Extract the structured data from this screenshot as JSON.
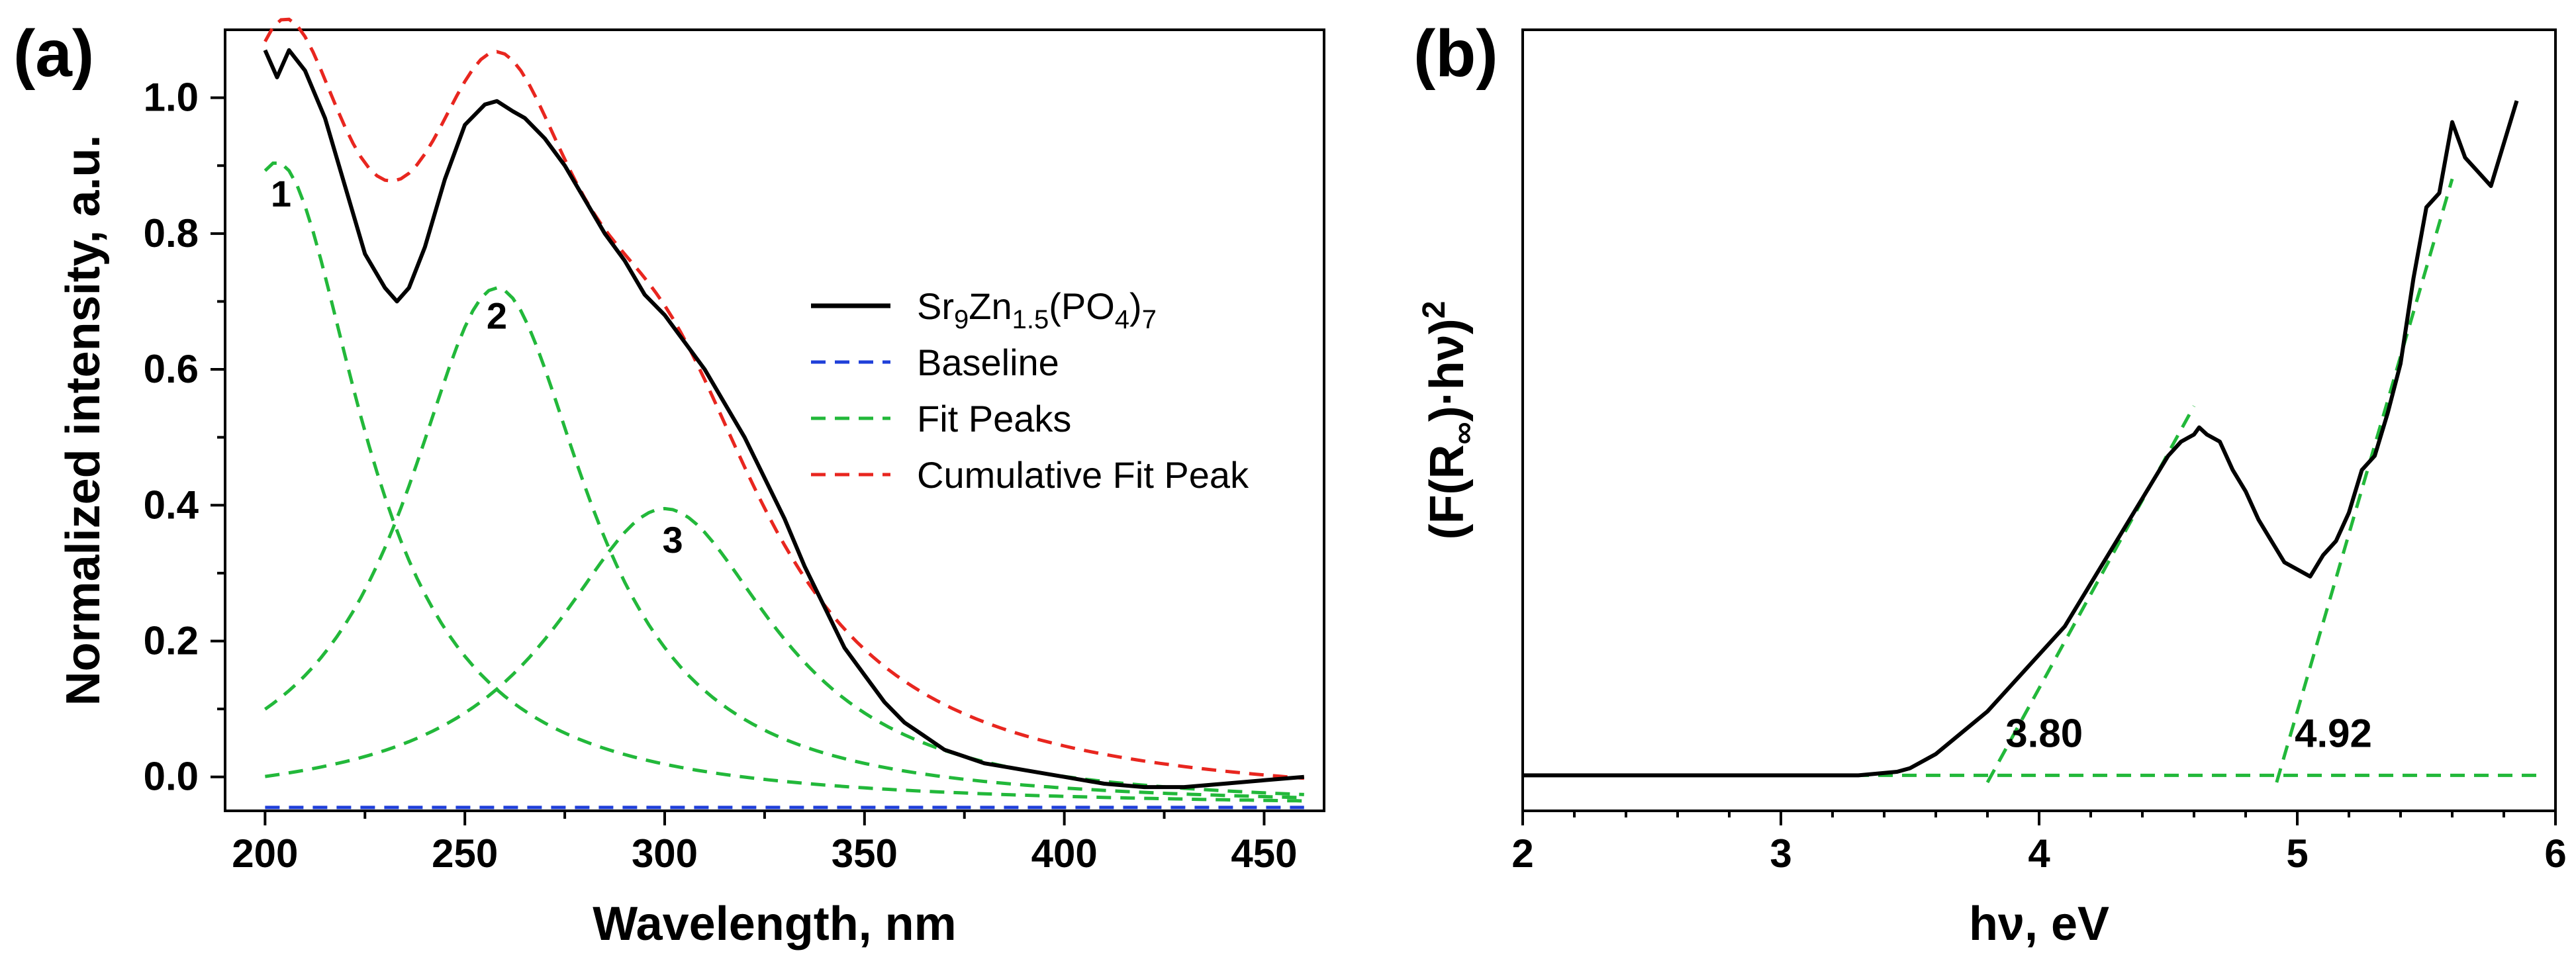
{
  "chart_data": [
    {
      "panel": "(a)",
      "type": "line",
      "xlabel": "Wavelength, nm",
      "ylabel": "Normalized intensity, a.u.",
      "xlim": [
        190,
        465
      ],
      "ylim": [
        -0.05,
        1.1
      ],
      "xticks": [
        200,
        250,
        300,
        350,
        400,
        450
      ],
      "yticks": [
        0.0,
        0.2,
        0.4,
        0.6,
        0.8,
        1.0
      ],
      "xtick_labels": [
        "200",
        "250",
        "300",
        "350",
        "400",
        "450"
      ],
      "ytick_labels": [
        "0.0",
        "0.2",
        "0.4",
        "0.6",
        "0.8",
        "1.0"
      ],
      "legend_position": "center-right",
      "legend": {
        "sample": {
          "base": "Sr",
          "s1": "9",
          "m1": "Zn",
          "s2": "1.5",
          "m2": "(PO",
          "s3": "4",
          "m3": ")",
          "s4": "7"
        },
        "baseline": "Baseline",
        "fit_peaks": "Fit Peaks",
        "cumulative": "Cumulative Fit Peak"
      },
      "colors": {
        "sample": "#000000",
        "baseline": "#1f3fd9",
        "fit": "#22b83a",
        "cumulative": "#e8261f"
      },
      "series": [
        {
          "name": "Sr9Zn1.5(PO4)7",
          "x": [
            200,
            203,
            206,
            210,
            215,
            220,
            225,
            230,
            233,
            236,
            240,
            245,
            250,
            255,
            258,
            262,
            265,
            270,
            275,
            280,
            285,
            290,
            295,
            300,
            305,
            310,
            315,
            320,
            325,
            330,
            335,
            340,
            345,
            350,
            355,
            360,
            365,
            370,
            375,
            380,
            390,
            400,
            410,
            420,
            430,
            440,
            450,
            460
          ],
          "y": [
            1.07,
            1.03,
            1.07,
            1.04,
            0.97,
            0.87,
            0.77,
            0.72,
            0.7,
            0.72,
            0.78,
            0.88,
            0.96,
            0.99,
            0.995,
            0.98,
            0.97,
            0.94,
            0.9,
            0.85,
            0.8,
            0.76,
            0.71,
            0.68,
            0.64,
            0.6,
            0.55,
            0.5,
            0.44,
            0.38,
            0.31,
            0.25,
            0.19,
            0.15,
            0.11,
            0.08,
            0.06,
            0.04,
            0.03,
            0.02,
            0.01,
            0.0,
            -0.01,
            -0.015,
            -0.015,
            -0.01,
            -0.005,
            0.0
          ]
        },
        {
          "name": "Baseline",
          "x": [
            200,
            460
          ],
          "y": [
            -0.045,
            -0.045
          ]
        }
      ],
      "fit_peaks": [
        {
          "label": "1",
          "center": 203,
          "amplitude": 0.95,
          "width": 26,
          "label_x": 204,
          "label_y": 0.84
        },
        {
          "label": "2",
          "center": 258,
          "amplitude": 0.765,
          "width": 28,
          "label_x": 258,
          "label_y": 0.66
        },
        {
          "label": "3",
          "center": 300,
          "amplitude": 0.44,
          "width": 34,
          "label_x": 302,
          "label_y": 0.33
        }
      ],
      "fit_offset": -0.045
    },
    {
      "panel": "(b)",
      "type": "line",
      "xlabel": "hν, eV",
      "ylabel": {
        "a": "(F(R",
        "sub": "∞",
        "b": ")·hν)",
        "sup": "2"
      },
      "xlim": [
        2.0,
        6.0
      ],
      "ylim": [
        -0.05,
        1.05
      ],
      "xticks": [
        2,
        3,
        4,
        5,
        6
      ],
      "xtick_labels": [
        "2",
        "3",
        "4",
        "5",
        "6"
      ],
      "series": [
        {
          "name": "(F(R∞)·hν)^2",
          "x": [
            2.0,
            2.5,
            3.0,
            3.3,
            3.45,
            3.5,
            3.6,
            3.7,
            3.8,
            3.9,
            4.0,
            4.1,
            4.2,
            4.3,
            4.4,
            4.5,
            4.55,
            4.6,
            4.62,
            4.65,
            4.7,
            4.75,
            4.8,
            4.85,
            4.9,
            4.95,
            5.0,
            5.05,
            5.1,
            5.15,
            5.2,
            5.25,
            5.3,
            5.35,
            5.4,
            5.45,
            5.5,
            5.55,
            5.6,
            5.65,
            5.7,
            5.75,
            5.8,
            5.85
          ],
          "y": [
            0.0,
            0.0,
            0.0,
            0.0,
            0.005,
            0.01,
            0.03,
            0.06,
            0.09,
            0.13,
            0.17,
            0.21,
            0.27,
            0.33,
            0.39,
            0.45,
            0.47,
            0.48,
            0.49,
            0.48,
            0.47,
            0.43,
            0.4,
            0.36,
            0.33,
            0.3,
            0.29,
            0.28,
            0.31,
            0.33,
            0.37,
            0.43,
            0.45,
            0.51,
            0.58,
            0.7,
            0.8,
            0.82,
            0.92,
            0.87,
            0.85,
            0.83,
            0.89,
            0.95
          ]
        }
      ],
      "tangent_lines": [
        {
          "x": [
            3.8,
            4.6
          ],
          "y": [
            -0.01,
            0.52
          ]
        },
        {
          "x": [
            4.92,
            5.6
          ],
          "y": [
            -0.01,
            0.84
          ]
        }
      ],
      "baseline_fit": {
        "x": [
          3.1,
          5.95
        ],
        "y": [
          0.0,
          0.0
        ]
      },
      "annotations": [
        {
          "text": "3.80",
          "x": 3.87,
          "y": 0.04
        },
        {
          "text": "4.92",
          "x": 4.99,
          "y": 0.04
        }
      ],
      "colors": {
        "curve": "#000000",
        "tangent": "#22b83a"
      }
    }
  ]
}
